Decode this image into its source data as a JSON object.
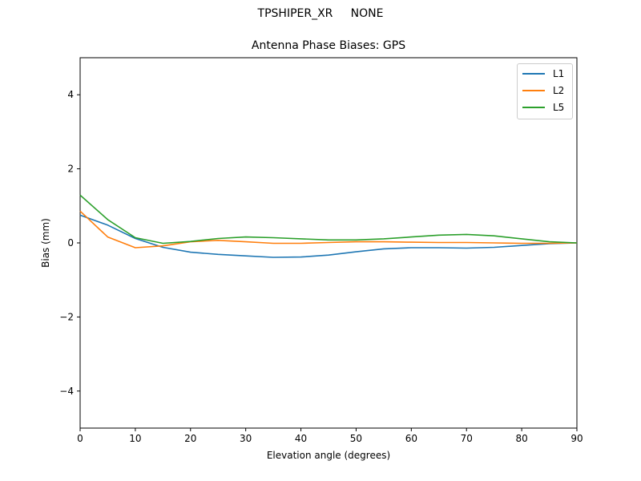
{
  "suptitle": "TPSHIPER_XR     NONE",
  "chart_data": {
    "type": "line",
    "title": "Antenna Phase Biases: GPS",
    "xlabel": "Elevation angle (degrees)",
    "ylabel": "Bias (mm)",
    "xlim": [
      0,
      90
    ],
    "ylim": [
      -5,
      5
    ],
    "xticks": [
      0,
      10,
      20,
      30,
      40,
      50,
      60,
      70,
      80,
      90
    ],
    "yticks": [
      -4,
      -2,
      0,
      2,
      4
    ],
    "ytick_labels": [
      "−4",
      "−2",
      "0",
      "2",
      "4"
    ],
    "grid": false,
    "legend_position": "upper right",
    "x": [
      0,
      5,
      10,
      15,
      20,
      25,
      30,
      35,
      40,
      45,
      50,
      55,
      60,
      65,
      70,
      75,
      80,
      85,
      90
    ],
    "series": [
      {
        "name": "L1",
        "color": "#1f77b4",
        "values": [
          0.75,
          0.48,
          0.12,
          -0.12,
          -0.25,
          -0.31,
          -0.35,
          -0.39,
          -0.38,
          -0.33,
          -0.24,
          -0.16,
          -0.13,
          -0.13,
          -0.14,
          -0.12,
          -0.07,
          -0.02,
          0.0
        ]
      },
      {
        "name": "L2",
        "color": "#ff7f0e",
        "values": [
          0.86,
          0.16,
          -0.13,
          -0.08,
          0.03,
          0.07,
          0.03,
          -0.01,
          -0.01,
          0.01,
          0.03,
          0.03,
          0.02,
          0.01,
          0.01,
          0.0,
          -0.01,
          -0.01,
          0.0
        ]
      },
      {
        "name": "L5",
        "color": "#2ca02c",
        "values": [
          1.29,
          0.63,
          0.14,
          -0.01,
          0.04,
          0.12,
          0.16,
          0.14,
          0.11,
          0.08,
          0.08,
          0.11,
          0.16,
          0.21,
          0.23,
          0.19,
          0.11,
          0.03,
          0.0
        ]
      }
    ]
  }
}
